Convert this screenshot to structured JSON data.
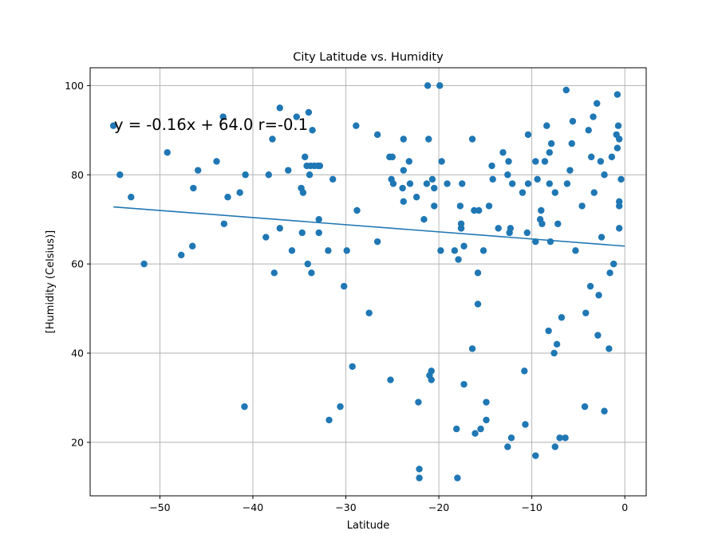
{
  "chart_data": {
    "type": "scatter",
    "title": "City Latitude vs. Humidity",
    "xlabel": "Latitude",
    "ylabel": "[Humidity (Celsius)]",
    "xlim": [
      -57.5,
      2.3
    ],
    "ylim": [
      8,
      104
    ],
    "xticks": [
      -50,
      -40,
      -30,
      -20,
      -10,
      0
    ],
    "yticks": [
      20,
      40,
      60,
      80,
      100
    ],
    "grid": true,
    "point_color": "#1f77b4",
    "annotation": "y = -0.16x + 64.0 r=-0.1",
    "regression": {
      "slope": -0.16,
      "intercept": 64.0,
      "x_range": [
        -55,
        0
      ]
    },
    "points": [
      [
        -55.0,
        91
      ],
      [
        -54.3,
        80
      ],
      [
        -53.1,
        75
      ],
      [
        -51.7,
        60
      ],
      [
        -49.2,
        85
      ],
      [
        -47.7,
        62
      ],
      [
        -46.5,
        64
      ],
      [
        -46.4,
        77
      ],
      [
        -45.9,
        81
      ],
      [
        -43.9,
        83
      ],
      [
        -43.2,
        93
      ],
      [
        -43.1,
        69
      ],
      [
        -42.7,
        75
      ],
      [
        -41.4,
        76
      ],
      [
        -40.9,
        28
      ],
      [
        -40.8,
        80
      ],
      [
        -38.6,
        66
      ],
      [
        -38.3,
        80
      ],
      [
        -37.9,
        88
      ],
      [
        -37.7,
        58
      ],
      [
        -37.1,
        95
      ],
      [
        -37.1,
        68
      ],
      [
        -36.2,
        81
      ],
      [
        -35.8,
        63
      ],
      [
        -35.3,
        93
      ],
      [
        -34.8,
        77
      ],
      [
        -34.7,
        67
      ],
      [
        -34.6,
        76
      ],
      [
        -34.4,
        84
      ],
      [
        -34.2,
        82
      ],
      [
        -34.1,
        60
      ],
      [
        -34.0,
        94
      ],
      [
        -33.9,
        80
      ],
      [
        -33.8,
        82
      ],
      [
        -33.7,
        58
      ],
      [
        -33.6,
        90
      ],
      [
        -33.4,
        82
      ],
      [
        -33.0,
        82
      ],
      [
        -32.9,
        67
      ],
      [
        -32.9,
        70
      ],
      [
        -32.8,
        82
      ],
      [
        -31.9,
        63
      ],
      [
        -31.8,
        25
      ],
      [
        -31.4,
        79
      ],
      [
        -30.6,
        28
      ],
      [
        -30.2,
        55
      ],
      [
        -29.9,
        63
      ],
      [
        -29.3,
        37
      ],
      [
        -28.9,
        91
      ],
      [
        -28.8,
        72
      ],
      [
        -27.5,
        49
      ],
      [
        -26.6,
        65
      ],
      [
        -26.6,
        89
      ],
      [
        -25.3,
        84
      ],
      [
        -25.2,
        34
      ],
      [
        -25.1,
        79
      ],
      [
        -25.0,
        84
      ],
      [
        -24.9,
        78
      ],
      [
        -23.9,
        77
      ],
      [
        -23.8,
        74
      ],
      [
        -23.8,
        81
      ],
      [
        -23.8,
        88
      ],
      [
        -23.2,
        83
      ],
      [
        -23.1,
        78
      ],
      [
        -22.4,
        75
      ],
      [
        -22.2,
        29
      ],
      [
        -22.1,
        14
      ],
      [
        -22.1,
        12
      ],
      [
        -21.6,
        70
      ],
      [
        -21.3,
        78
      ],
      [
        -21.2,
        100
      ],
      [
        -21.1,
        88
      ],
      [
        -21.0,
        35
      ],
      [
        -20.8,
        34
      ],
      [
        -20.8,
        36
      ],
      [
        -20.7,
        79
      ],
      [
        -20.5,
        77
      ],
      [
        -20.5,
        73
      ],
      [
        -19.9,
        100
      ],
      [
        -19.8,
        63
      ],
      [
        -19.7,
        83
      ],
      [
        -19.1,
        78
      ],
      [
        -18.3,
        63
      ],
      [
        -18.1,
        23
      ],
      [
        -18.0,
        12
      ],
      [
        -17.9,
        61
      ],
      [
        -17.7,
        73
      ],
      [
        -17.6,
        68
      ],
      [
        -17.6,
        69
      ],
      [
        -17.6,
        68
      ],
      [
        -17.5,
        78
      ],
      [
        -17.3,
        64
      ],
      [
        -17.3,
        33
      ],
      [
        -16.4,
        88
      ],
      [
        -16.4,
        41
      ],
      [
        -16.2,
        72
      ],
      [
        -16.1,
        22
      ],
      [
        -15.8,
        58
      ],
      [
        -15.8,
        51
      ],
      [
        -15.7,
        72
      ],
      [
        -15.5,
        23
      ],
      [
        -15.2,
        63
      ],
      [
        -14.9,
        29
      ],
      [
        -14.9,
        25
      ],
      [
        -14.6,
        73
      ],
      [
        -14.3,
        82
      ],
      [
        -14.2,
        79
      ],
      [
        -13.6,
        68
      ],
      [
        -13.1,
        85
      ],
      [
        -12.6,
        80
      ],
      [
        -12.6,
        19
      ],
      [
        -12.5,
        83
      ],
      [
        -12.4,
        67
      ],
      [
        -12.3,
        68
      ],
      [
        -12.2,
        21
      ],
      [
        -12.1,
        78
      ],
      [
        -11.0,
        76
      ],
      [
        -10.8,
        36
      ],
      [
        -10.7,
        24
      ],
      [
        -10.5,
        67
      ],
      [
        -10.4,
        89
      ],
      [
        -10.4,
        78
      ],
      [
        -9.6,
        17
      ],
      [
        -9.6,
        83
      ],
      [
        -9.6,
        65
      ],
      [
        -9.4,
        79
      ],
      [
        -9.1,
        70
      ],
      [
        -9.0,
        72
      ],
      [
        -8.9,
        69
      ],
      [
        -8.6,
        83
      ],
      [
        -8.4,
        91
      ],
      [
        -8.2,
        45
      ],
      [
        -8.1,
        78
      ],
      [
        -8.1,
        85
      ],
      [
        -8.0,
        65
      ],
      [
        -7.9,
        87
      ],
      [
        -7.6,
        40
      ],
      [
        -7.5,
        19
      ],
      [
        -7.5,
        76
      ],
      [
        -7.3,
        42
      ],
      [
        -7.2,
        69
      ],
      [
        -7.0,
        21
      ],
      [
        -6.8,
        48
      ],
      [
        -6.4,
        21
      ],
      [
        -6.3,
        99
      ],
      [
        -6.2,
        78
      ],
      [
        -5.9,
        81
      ],
      [
        -5.7,
        87
      ],
      [
        -5.6,
        92
      ],
      [
        -5.3,
        63
      ],
      [
        -4.6,
        73
      ],
      [
        -4.3,
        28
      ],
      [
        -4.2,
        49
      ],
      [
        -3.9,
        90
      ],
      [
        -3.7,
        55
      ],
      [
        -3.6,
        84
      ],
      [
        -3.4,
        93
      ],
      [
        -3.3,
        76
      ],
      [
        -3.0,
        96
      ],
      [
        -2.9,
        44
      ],
      [
        -2.8,
        53
      ],
      [
        -2.6,
        83
      ],
      [
        -2.5,
        66
      ],
      [
        -2.2,
        27
      ],
      [
        -2.2,
        80
      ],
      [
        -1.7,
        41
      ],
      [
        -1.6,
        58
      ],
      [
        -1.4,
        84
      ],
      [
        -1.2,
        60
      ],
      [
        -0.9,
        89
      ],
      [
        -0.8,
        98
      ],
      [
        -0.8,
        86
      ],
      [
        -0.7,
        91
      ],
      [
        -0.6,
        73
      ],
      [
        -0.6,
        88
      ],
      [
        -0.6,
        74
      ],
      [
        -0.6,
        68
      ],
      [
        -0.4,
        79
      ]
    ]
  }
}
